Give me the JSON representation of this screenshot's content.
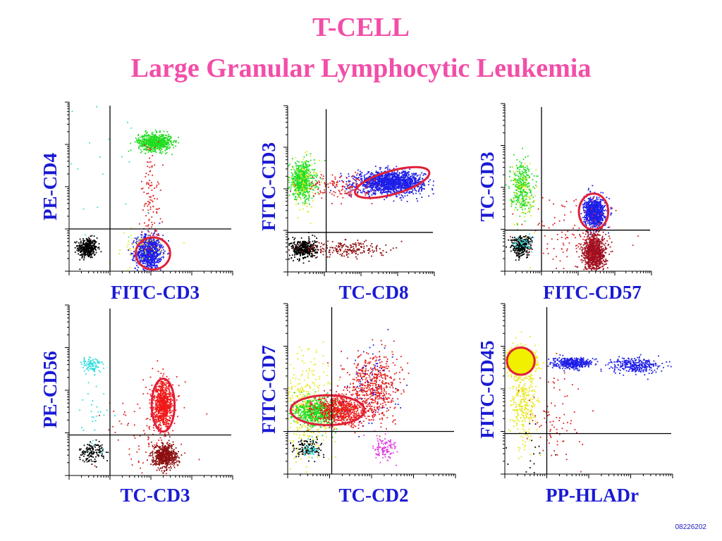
{
  "title_line1": "T-CELL",
  "title_line2": "Large Granular Lymphocytic  Leukemia",
  "slide_code": "08226202",
  "colors": {
    "title": "#f24ea8",
    "labels": "#1a1ad4",
    "gate": "#e0203a"
  },
  "chart_data": [
    {
      "type": "scatter",
      "id": "p1",
      "xlabel": "FITC-CD3",
      "ylabel": "PE-CD4",
      "xlim": [
        0,
        4
      ],
      "ylim": [
        0,
        4
      ],
      "scale": "log-decades",
      "quadrant_lines": {
        "x": 1.0,
        "y": 1.0
      },
      "populations": [
        {
          "color": "#000000",
          "cx": 0.45,
          "cy": 0.55,
          "sx": 0.12,
          "sy": 0.12,
          "n": 350
        },
        {
          "color": "#1e1ee8",
          "cx": 1.95,
          "cy": 0.45,
          "sx": 0.16,
          "sy": 0.2,
          "n": 900
        },
        {
          "color": "#22dd22",
          "cx": 2.1,
          "cy": 3.05,
          "sx": 0.2,
          "sy": 0.1,
          "n": 700
        },
        {
          "color": "#e02020",
          "cx": 2.0,
          "cy": 1.7,
          "sx": 0.12,
          "sy": 0.7,
          "n": 120
        },
        {
          "color": "#e8e820",
          "cx": 1.7,
          "cy": 0.55,
          "sx": 0.4,
          "sy": 0.2,
          "n": 60
        },
        {
          "color": "#33dddd",
          "cx": 0.8,
          "cy": 2.4,
          "sx": 0.6,
          "sy": 0.9,
          "n": 25
        }
      ],
      "gates": [
        {
          "cx": 2.05,
          "cy": 0.42,
          "rx": 0.42,
          "ry": 0.38,
          "angle": 0
        }
      ]
    },
    {
      "type": "scatter",
      "id": "p2",
      "xlabel": "TC-CD8",
      "ylabel": "FITC-CD3",
      "xlim": [
        0,
        4
      ],
      "ylim": [
        0,
        4
      ],
      "scale": "log-decades",
      "quadrant_lines": {
        "x": 1.05,
        "y": 0.95
      },
      "populations": [
        {
          "color": "#22dd22",
          "cx": 0.4,
          "cy": 2.2,
          "sx": 0.17,
          "sy": 0.22,
          "n": 600
        },
        {
          "color": "#e8e820",
          "cx": 0.45,
          "cy": 2.1,
          "sx": 0.2,
          "sy": 0.3,
          "n": 80
        },
        {
          "color": "#1e1ee8",
          "cx": 2.8,
          "cy": 2.15,
          "sx": 0.45,
          "sy": 0.13,
          "n": 1600
        },
        {
          "color": "#e02020",
          "cx": 1.4,
          "cy": 2.05,
          "sx": 0.45,
          "sy": 0.15,
          "n": 140
        },
        {
          "color": "#000000",
          "cx": 0.45,
          "cy": 0.55,
          "sx": 0.17,
          "sy": 0.12,
          "n": 380
        },
        {
          "color": "#8b0a0a",
          "cx": 1.6,
          "cy": 0.55,
          "sx": 0.55,
          "sy": 0.1,
          "n": 200
        }
      ],
      "gates": [
        {
          "cx": 2.85,
          "cy": 2.15,
          "rx": 1.05,
          "ry": 0.28,
          "angle": -16
        }
      ]
    },
    {
      "type": "scatter",
      "id": "p3",
      "xlabel": "FITC-CD57",
      "ylabel": "TC-CD3",
      "xlim": [
        0,
        4
      ],
      "ylim": [
        0,
        4
      ],
      "scale": "log-decades",
      "quadrant_lines": {
        "x": 1.0,
        "y": 0.98
      },
      "populations": [
        {
          "color": "#22dd22",
          "cx": 0.45,
          "cy": 2.05,
          "sx": 0.15,
          "sy": 0.3,
          "n": 300
        },
        {
          "color": "#e8e820",
          "cx": 0.5,
          "cy": 1.8,
          "sx": 0.2,
          "sy": 0.5,
          "n": 70
        },
        {
          "color": "#000000",
          "cx": 0.45,
          "cy": 0.6,
          "sx": 0.14,
          "sy": 0.12,
          "n": 300
        },
        {
          "color": "#33dddd",
          "cx": 0.5,
          "cy": 0.65,
          "sx": 0.12,
          "sy": 0.1,
          "n": 40
        },
        {
          "color": "#1e1ee8",
          "cx": 2.45,
          "cy": 1.4,
          "sx": 0.14,
          "sy": 0.17,
          "n": 900
        },
        {
          "color": "#a01020",
          "cx": 2.45,
          "cy": 0.45,
          "sx": 0.15,
          "sy": 0.22,
          "n": 900
        },
        {
          "color": "#e02020",
          "cx": 1.8,
          "cy": 0.8,
          "sx": 0.6,
          "sy": 0.5,
          "n": 120
        }
      ],
      "gates": [
        {
          "cx": 2.42,
          "cy": 1.42,
          "rx": 0.4,
          "ry": 0.43,
          "angle": 0
        }
      ]
    },
    {
      "type": "scatter",
      "id": "p4",
      "xlabel": "TC-CD3",
      "ylabel": "PE-CD56",
      "xlim": [
        0,
        4
      ],
      "ylim": [
        0,
        4
      ],
      "scale": "log-decades",
      "quadrant_lines": {
        "x": 1.0,
        "y": 0.95
      },
      "populations": [
        {
          "color": "#33dddd",
          "cx": 0.55,
          "cy": 2.6,
          "sx": 0.13,
          "sy": 0.1,
          "n": 90
        },
        {
          "color": "#000000",
          "cx": 0.55,
          "cy": 0.55,
          "sx": 0.15,
          "sy": 0.12,
          "n": 140
        },
        {
          "color": "#f01818",
          "cx": 2.3,
          "cy": 1.65,
          "sx": 0.12,
          "sy": 0.27,
          "n": 800
        },
        {
          "color": "#8b1010",
          "cx": 2.35,
          "cy": 0.45,
          "sx": 0.14,
          "sy": 0.14,
          "n": 600
        },
        {
          "color": "#e02020",
          "cx": 1.9,
          "cy": 1.1,
          "sx": 0.5,
          "sy": 0.5,
          "n": 90
        },
        {
          "color": "#33dddd",
          "cx": 0.6,
          "cy": 1.4,
          "sx": 0.2,
          "sy": 0.7,
          "n": 35
        }
      ],
      "gates": [
        {
          "cx": 2.3,
          "cy": 1.65,
          "rx": 0.28,
          "ry": 0.62,
          "angle": 0
        }
      ]
    },
    {
      "type": "scatter",
      "id": "p5",
      "xlabel": "TC-CD2",
      "ylabel": "FITC-CD7",
      "xlim": [
        0,
        4
      ],
      "ylim": [
        0,
        4
      ],
      "scale": "log-decades",
      "quadrant_lines": {
        "x": 1.05,
        "y": 1.0
      },
      "populations": [
        {
          "color": "#e8e820",
          "cx": 0.45,
          "cy": 1.55,
          "sx": 0.28,
          "sy": 0.6,
          "n": 400
        },
        {
          "color": "#22dd22",
          "cx": 0.7,
          "cy": 1.45,
          "sx": 0.28,
          "sy": 0.16,
          "n": 600
        },
        {
          "color": "#f01818",
          "cx": 1.25,
          "cy": 1.5,
          "sx": 0.3,
          "sy": 0.17,
          "n": 650
        },
        {
          "color": "#e02020",
          "cx": 2.05,
          "cy": 2.05,
          "sx": 0.3,
          "sy": 0.4,
          "n": 600
        },
        {
          "color": "#1e1ee8",
          "cx": 2.0,
          "cy": 2.1,
          "sx": 0.35,
          "sy": 0.5,
          "n": 60
        },
        {
          "color": "#000000",
          "cx": 0.5,
          "cy": 0.6,
          "sx": 0.17,
          "sy": 0.12,
          "n": 120
        },
        {
          "color": "#33dddd",
          "cx": 0.5,
          "cy": 0.55,
          "sx": 0.12,
          "sy": 0.1,
          "n": 40
        },
        {
          "color": "#e040e0",
          "cx": 2.3,
          "cy": 0.6,
          "sx": 0.14,
          "sy": 0.15,
          "n": 110
        }
      ],
      "gates": [
        {
          "cx": 0.95,
          "cy": 1.5,
          "rx": 0.88,
          "ry": 0.35,
          "angle": 0
        }
      ]
    },
    {
      "type": "scatter",
      "id": "p6",
      "xlabel": "PP-HLADr",
      "ylabel": "FITC-CD45",
      "xlim": [
        0,
        4
      ],
      "ylim": [
        0,
        4
      ],
      "scale": "log-decades",
      "quadrant_lines": {
        "x": 1.0,
        "y": 0.95
      },
      "populations": [
        {
          "color": "#f0f000",
          "cx": 0.38,
          "cy": 2.65,
          "sx": 0.16,
          "sy": 0.12,
          "n": 1500
        },
        {
          "color": "#e8e820",
          "cx": 0.45,
          "cy": 1.8,
          "sx": 0.16,
          "sy": 0.5,
          "n": 350
        },
        {
          "color": "#1e1ee8",
          "cx": 1.6,
          "cy": 2.6,
          "sx": 0.22,
          "sy": 0.06,
          "n": 400
        },
        {
          "color": "#1e1ee8",
          "cx": 3.1,
          "cy": 2.55,
          "sx": 0.3,
          "sy": 0.09,
          "n": 300
        },
        {
          "color": "#e02020",
          "cx": 1.2,
          "cy": 1.3,
          "sx": 0.35,
          "sy": 0.6,
          "n": 80
        },
        {
          "color": "#000000",
          "cx": 0.55,
          "cy": 0.5,
          "sx": 0.25,
          "sy": 0.3,
          "n": 20
        }
      ],
      "gates": [
        {
          "cx": 0.38,
          "cy": 2.65,
          "rx": 0.33,
          "ry": 0.32,
          "angle": 0,
          "fill": "#f0f000"
        }
      ]
    }
  ]
}
